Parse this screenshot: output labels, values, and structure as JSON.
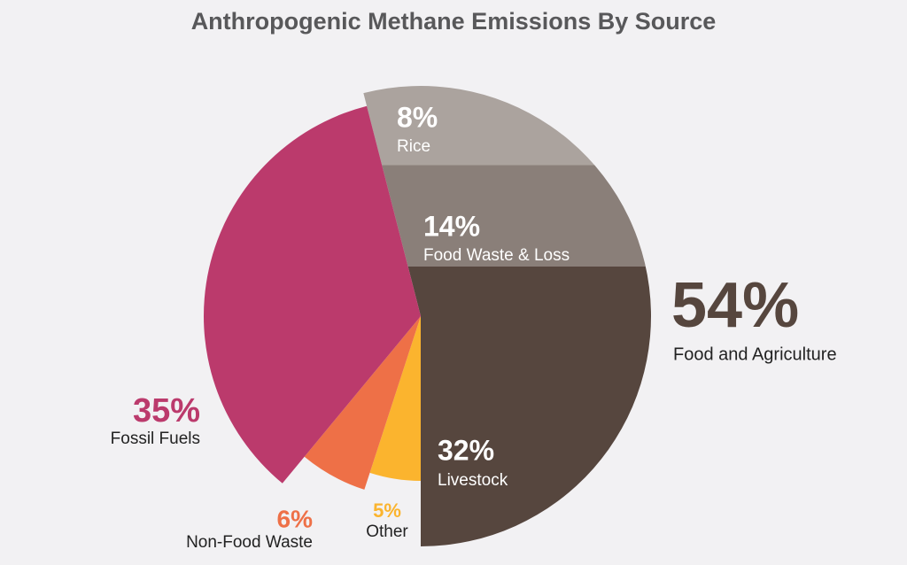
{
  "chart_data": {
    "type": "pie",
    "title": "Anthropogenic Methane Emissions By Source",
    "categories": [
      "Livestock",
      "Food Waste & Loss",
      "Rice",
      "Other",
      "Non-Food Waste",
      "Fossil Fuels"
    ],
    "values": [
      32,
      14,
      8,
      5,
      6,
      35
    ],
    "value_labels": [
      "32%",
      "14%",
      "8%",
      "5%",
      "6%",
      "35%"
    ],
    "colors": [
      "#56463e",
      "#8a7f79",
      "#aba39e",
      "#fbb42e",
      "#ee7047",
      "#bb3a6c"
    ],
    "group": {
      "name": "Food and Agriculture",
      "value": 54,
      "value_label": "54%",
      "color": "#56463e"
    }
  }
}
